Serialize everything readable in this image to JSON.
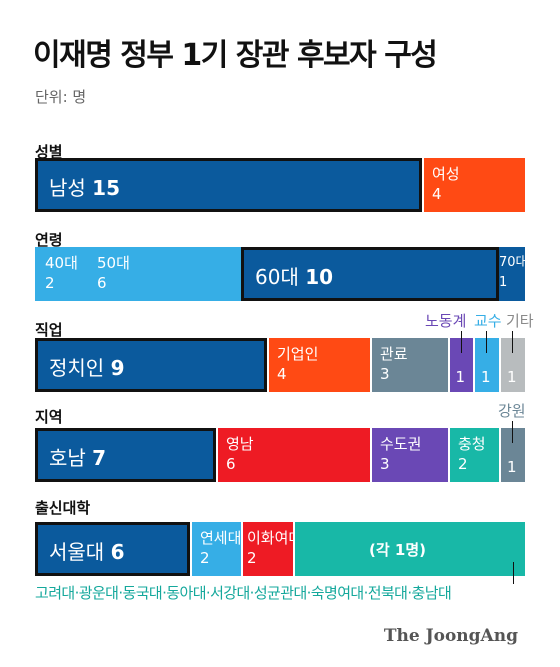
{
  "title": "이재명 정부 1기 장관 후보자 구성",
  "unit": "단위: 명",
  "colors": {
    "darkblue": "#0b5a9d",
    "orange": "#ff4a14",
    "lightblue": "#36aee6",
    "purple": "#6a48b5",
    "red": "#ee1b24",
    "gray": "#6b8696",
    "lightgray": "#b8bcbe",
    "teal": "#18b8a7"
  },
  "chart_data": [
    {
      "type": "bar",
      "title": "성별",
      "categories": [
        "남성",
        "여성"
      ],
      "values": [
        15,
        4
      ]
    },
    {
      "type": "bar",
      "title": "연령",
      "categories": [
        "40대",
        "50대",
        "60대",
        "70대"
      ],
      "values": [
        2,
        6,
        10,
        1
      ]
    },
    {
      "type": "bar",
      "title": "직업",
      "categories": [
        "정치인",
        "기업인",
        "관료",
        "노동계",
        "교수",
        "기타"
      ],
      "values": [
        9,
        4,
        3,
        1,
        1,
        1
      ]
    },
    {
      "type": "bar",
      "title": "지역",
      "categories": [
        "호남",
        "영남",
        "수도권",
        "충청",
        "강원"
      ],
      "values": [
        7,
        6,
        3,
        2,
        1
      ]
    },
    {
      "type": "bar",
      "title": "출신대학",
      "categories": [
        "서울대",
        "연세대",
        "이화여대",
        "고려대",
        "광운대",
        "동국대",
        "동아대",
        "서강대",
        "성균관대",
        "숙명여대",
        "전북대",
        "충남대"
      ],
      "values": [
        6,
        2,
        2,
        1,
        1,
        1,
        1,
        1,
        1,
        1,
        1,
        1
      ],
      "group_label": "(각 1명)",
      "group_list": "고려대·광운대·동국대·동아대·서강대·성균관대·숙명여대·전북대·충남대"
    }
  ],
  "logo": "The JoongAng"
}
